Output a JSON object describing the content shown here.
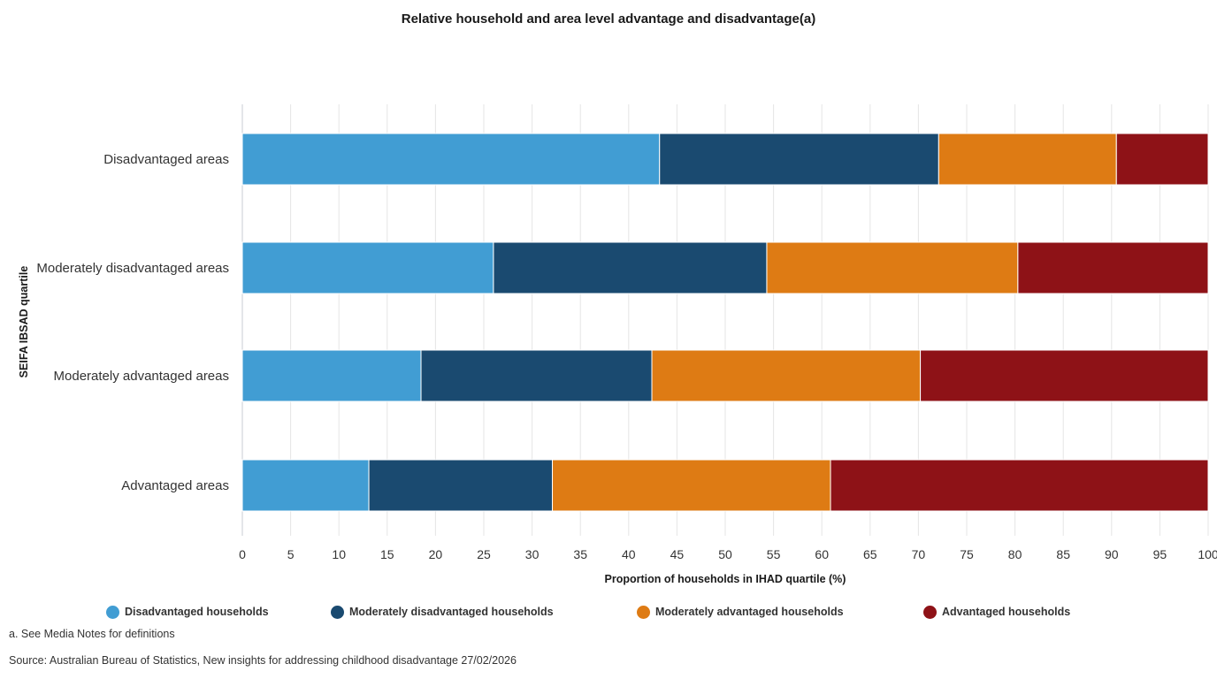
{
  "chart_data": {
    "type": "bar",
    "orientation": "horizontal",
    "stacked": true,
    "title": "Relative household and area level advantage and disadvantage(a)",
    "xlabel": "Proportion of households in IHAD quartile (%)",
    "ylabel": "SEIFA IBSAD quartile",
    "xlim": [
      0,
      100
    ],
    "xticks": [
      "0",
      "5",
      "10",
      "15",
      "20",
      "25",
      "30",
      "35",
      "40",
      "45",
      "50",
      "55",
      "60",
      "65",
      "70",
      "75",
      "80",
      "85",
      "90",
      "95",
      "100"
    ],
    "grid": true,
    "legend_position": "bottom",
    "categories": [
      "Disadvantaged areas",
      "Moderately disadvantaged areas",
      "Moderately advantaged areas",
      "Advantaged areas"
    ],
    "series": [
      {
        "name": "Disadvantaged households",
        "color": "#419dd3",
        "values": [
          43.2,
          26.0,
          18.5,
          13.1
        ]
      },
      {
        "name": "Moderately disadvantaged households",
        "color": "#1a4a70",
        "values": [
          28.9,
          28.3,
          23.9,
          19.0
        ]
      },
      {
        "name": "Moderately advantaged households",
        "color": "#de7b14",
        "values": [
          18.4,
          26.0,
          27.8,
          28.8
        ]
      },
      {
        "name": "Advantaged households",
        "color": "#8e1217",
        "values": [
          9.5,
          19.7,
          29.8,
          39.1
        ]
      }
    ]
  },
  "notes": {
    "footnote": "a. See Media Notes for definitions",
    "source": "Source: Australian Bureau of Statistics, New insights for addressing childhood disadvantage 27/02/2026"
  }
}
